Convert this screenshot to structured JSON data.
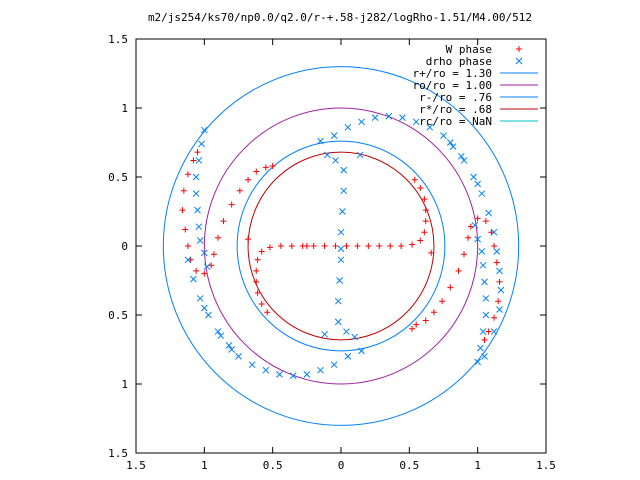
{
  "chart_data": {
    "type": "scatter",
    "title": "m2/js254/ks70/np0.0/q2.0/r-+.58-j282/logRho-1.51/M4.00/512",
    "xlim": [
      -1.5,
      1.5
    ],
    "ylim": [
      -1.5,
      1.5
    ],
    "x_tick_values": [
      -1.5,
      -1,
      -0.5,
      0,
      0.5,
      1,
      1.5
    ],
    "x_tick_labels": [
      "1.5",
      "1",
      "0.5",
      "0",
      "0.5",
      "1",
      "1.5"
    ],
    "y_tick_values": [
      1.5,
      1,
      0.5,
      0,
      -0.5,
      -1,
      -1.5
    ],
    "y_tick_labels": [
      "1.5",
      "1",
      "0.5",
      "0",
      "0.5",
      "1",
      "1.5"
    ],
    "legend_position": "top-right",
    "grid": false,
    "series": [
      {
        "name": "W phase",
        "kind": "points",
        "marker": "plus",
        "color": "#ff0000",
        "points": [
          [
            0.04,
            0.0
          ],
          [
            0.12,
            0.0
          ],
          [
            0.2,
            0.0
          ],
          [
            0.28,
            0.0
          ],
          [
            0.36,
            0.0
          ],
          [
            0.44,
            0.0
          ],
          [
            0.52,
            0.01
          ],
          [
            0.58,
            0.04
          ],
          [
            0.61,
            0.1
          ],
          [
            0.62,
            0.18
          ],
          [
            0.62,
            0.26
          ],
          [
            0.61,
            0.34
          ],
          [
            0.58,
            0.42
          ],
          [
            0.54,
            0.48
          ],
          [
            0.66,
            -0.05
          ],
          [
            0.52,
            -0.6
          ],
          [
            -0.04,
            0.0
          ],
          [
            -0.12,
            0.0
          ],
          [
            -0.2,
            0.0
          ],
          [
            -0.28,
            0.0
          ],
          [
            -0.36,
            0.0
          ],
          [
            -0.44,
            0.0
          ],
          [
            -0.52,
            -0.01
          ],
          [
            -0.58,
            -0.04
          ],
          [
            -0.61,
            -0.1
          ],
          [
            -0.62,
            -0.18
          ],
          [
            -0.62,
            -0.26
          ],
          [
            -0.61,
            -0.34
          ],
          [
            -0.58,
            -0.42
          ],
          [
            -0.54,
            -0.48
          ],
          [
            -0.68,
            0.05
          ],
          [
            -0.5,
            0.58
          ],
          [
            -0.25,
            0.0
          ],
          [
            -0.55,
            0.57
          ],
          [
            -0.62,
            0.54
          ],
          [
            -0.68,
            0.48
          ],
          [
            -0.74,
            0.4
          ],
          [
            -0.8,
            0.3
          ],
          [
            -0.86,
            0.18
          ],
          [
            -0.9,
            0.06
          ],
          [
            -0.93,
            -0.06
          ],
          [
            -0.95,
            -0.14
          ],
          [
            -1.0,
            -0.2
          ],
          [
            -1.06,
            -0.18
          ],
          [
            -1.1,
            -0.1
          ],
          [
            -1.12,
            0.0
          ],
          [
            -1.14,
            0.12
          ],
          [
            -1.16,
            0.26
          ],
          [
            -1.15,
            0.4
          ],
          [
            -1.12,
            0.52
          ],
          [
            -1.08,
            0.62
          ],
          [
            -1.05,
            0.68
          ],
          [
            0.55,
            -0.57
          ],
          [
            0.62,
            -0.54
          ],
          [
            0.68,
            -0.48
          ],
          [
            0.74,
            -0.4
          ],
          [
            0.8,
            -0.3
          ],
          [
            0.86,
            -0.18
          ],
          [
            0.9,
            -0.06
          ],
          [
            0.93,
            0.06
          ],
          [
            0.95,
            0.14
          ],
          [
            1.0,
            0.2
          ],
          [
            1.06,
            0.18
          ],
          [
            1.1,
            0.1
          ],
          [
            1.12,
            0.0
          ],
          [
            1.14,
            -0.12
          ],
          [
            1.16,
            -0.26
          ],
          [
            1.15,
            -0.4
          ],
          [
            1.12,
            -0.52
          ],
          [
            1.08,
            -0.62
          ],
          [
            1.05,
            -0.68
          ]
        ]
      },
      {
        "name": "drho phase",
        "kind": "points",
        "marker": "cross",
        "color": "#0080ff",
        "points": [
          [
            0.02,
            0.55
          ],
          [
            0.02,
            0.4
          ],
          [
            0.01,
            0.25
          ],
          [
            0.0,
            0.1
          ],
          [
            0.0,
            -0.02
          ],
          [
            0.0,
            -0.1
          ],
          [
            -0.01,
            -0.25
          ],
          [
            -0.02,
            -0.4
          ],
          [
            -0.02,
            -0.55
          ],
          [
            -0.04,
            0.62
          ],
          [
            -0.1,
            0.66
          ],
          [
            0.04,
            -0.62
          ],
          [
            0.1,
            -0.66
          ],
          [
            -0.12,
            -0.64
          ],
          [
            0.14,
            0.66
          ],
          [
            -0.15,
            0.76
          ],
          [
            -0.05,
            0.8
          ],
          [
            0.05,
            0.86
          ],
          [
            0.15,
            0.9
          ],
          [
            0.25,
            0.93
          ],
          [
            0.35,
            0.94
          ],
          [
            0.45,
            0.93
          ],
          [
            0.55,
            0.9
          ],
          [
            0.65,
            0.86
          ],
          [
            0.75,
            0.8
          ],
          [
            0.82,
            0.72
          ],
          [
            0.9,
            0.62
          ],
          [
            0.97,
            0.5
          ],
          [
            1.03,
            0.38
          ],
          [
            1.08,
            0.24
          ],
          [
            1.12,
            0.1
          ],
          [
            1.14,
            -0.04
          ],
          [
            1.16,
            -0.18
          ],
          [
            1.17,
            -0.32
          ],
          [
            1.16,
            -0.46
          ],
          [
            1.12,
            -0.62
          ],
          [
            1.05,
            -0.8
          ],
          [
            0.15,
            -0.76
          ],
          [
            0.05,
            -0.8
          ],
          [
            -0.05,
            -0.86
          ],
          [
            -0.15,
            -0.9
          ],
          [
            -0.25,
            -0.93
          ],
          [
            -0.35,
            -0.94
          ],
          [
            -0.45,
            -0.93
          ],
          [
            -0.55,
            -0.9
          ],
          [
            -0.65,
            -0.86
          ],
          [
            -0.75,
            -0.8
          ],
          [
            -0.82,
            -0.72
          ],
          [
            -0.9,
            -0.62
          ],
          [
            -0.97,
            -0.5
          ],
          [
            -1.03,
            -0.38
          ],
          [
            -1.08,
            -0.24
          ],
          [
            -1.12,
            -0.1
          ],
          [
            -1.0,
            0.84
          ],
          [
            -1.02,
            0.74
          ],
          [
            -1.04,
            0.62
          ],
          [
            -1.06,
            0.5
          ],
          [
            -1.06,
            0.38
          ],
          [
            -1.05,
            0.26
          ],
          [
            -1.04,
            0.14
          ],
          [
            -1.03,
            0.04
          ],
          [
            -1.0,
            -0.05
          ],
          [
            -0.98,
            -0.15
          ],
          [
            1.0,
            -0.84
          ],
          [
            1.02,
            -0.74
          ],
          [
            1.04,
            -0.62
          ],
          [
            1.06,
            -0.5
          ],
          [
            1.06,
            -0.38
          ],
          [
            1.05,
            -0.26
          ],
          [
            1.04,
            -0.14
          ],
          [
            1.03,
            -0.04
          ],
          [
            1.0,
            0.05
          ],
          [
            0.98,
            0.15
          ],
          [
            0.8,
            0.75
          ],
          [
            0.88,
            0.65
          ],
          [
            1.0,
            0.45
          ],
          [
            -0.8,
            -0.75
          ],
          [
            -0.88,
            -0.65
          ],
          [
            -1.0,
            -0.45
          ]
        ]
      },
      {
        "name": "r+/ro = 1.30",
        "kind": "circle",
        "radius": 1.3,
        "color": "#0080ff"
      },
      {
        "name": "ro/ro = 1.00",
        "kind": "circle",
        "radius": 1.0,
        "color": "#a020a0"
      },
      {
        "name": "r-/ro = .76",
        "kind": "circle",
        "radius": 0.76,
        "color": "#0080ff"
      },
      {
        "name": "r*/ro = .68",
        "kind": "circle",
        "radius": 0.68,
        "color": "#c00000"
      },
      {
        "name": "rc/ro = NaN",
        "kind": "circle",
        "radius": null,
        "color": "#00c0c0"
      }
    ]
  }
}
